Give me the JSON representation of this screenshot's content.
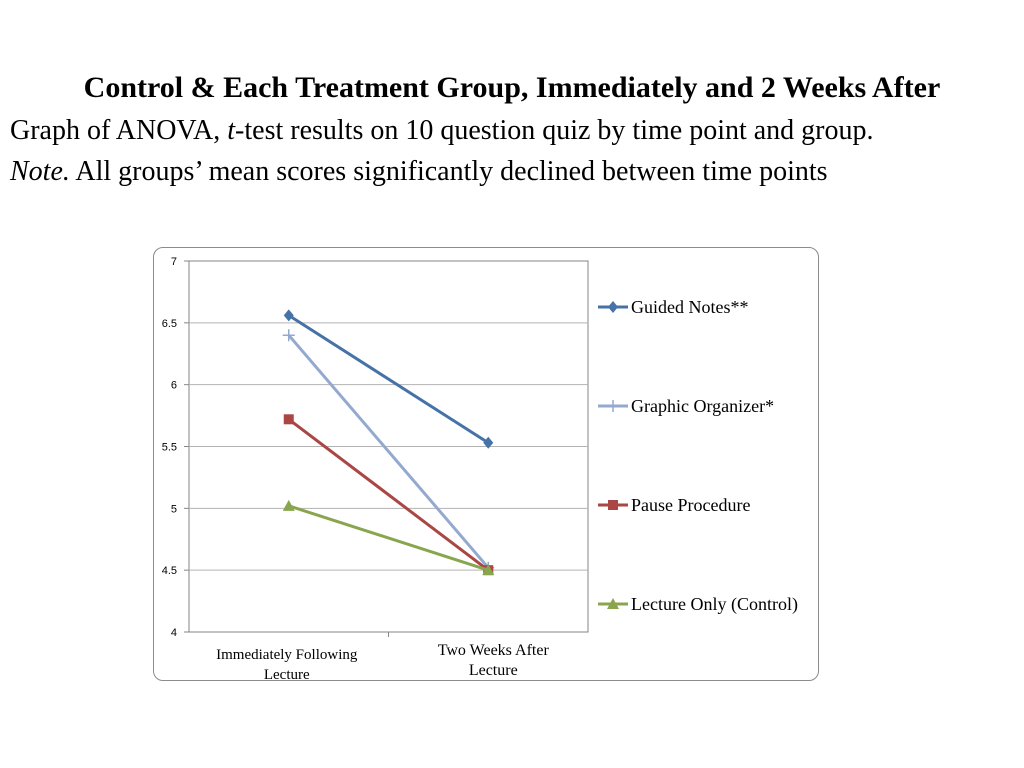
{
  "slide": {
    "title": "Control & Each Treatment Group, Immediately and 2 Weeks After",
    "caption_line1_pre": "Graph of ANOVA, ",
    "caption_line1_italic": "t",
    "caption_line1_post": "-test results on 10 question quiz by time point and group.",
    "note_label": "Note.",
    "note_text": " All groups’ mean scores significantly declined between time points"
  },
  "chart_data": {
    "type": "line",
    "categories": [
      "Immediately Following Lecture",
      "Two Weeks After Lecture"
    ],
    "category_lines": [
      [
        "Immediately Following",
        "Lecture"
      ],
      [
        "Two Weeks After",
        "Lecture"
      ]
    ],
    "ylim": [
      4,
      7
    ],
    "yticks": [
      "7",
      "6.5",
      "6",
      "5.5",
      "5",
      "4.5",
      "4"
    ],
    "ytick_values": [
      7,
      6.5,
      6,
      5.5,
      5,
      4.5,
      4
    ],
    "grid": true,
    "legend_position": "right",
    "series": [
      {
        "name": "Guided Notes**",
        "values": [
          6.56,
          5.53
        ],
        "color": "#4572a7",
        "marker": "diamond"
      },
      {
        "name": "Graphic Organizer*",
        "values": [
          6.4,
          4.52
        ],
        "color": "#93a9cf",
        "marker": "plus"
      },
      {
        "name": "Pause Procedure",
        "values": [
          5.72,
          4.5
        ],
        "color": "#aa4643",
        "marker": "square"
      },
      {
        "name": "Lecture Only (Control)",
        "values": [
          5.02,
          4.5
        ],
        "color": "#89a54e",
        "marker": "triangle"
      }
    ]
  }
}
